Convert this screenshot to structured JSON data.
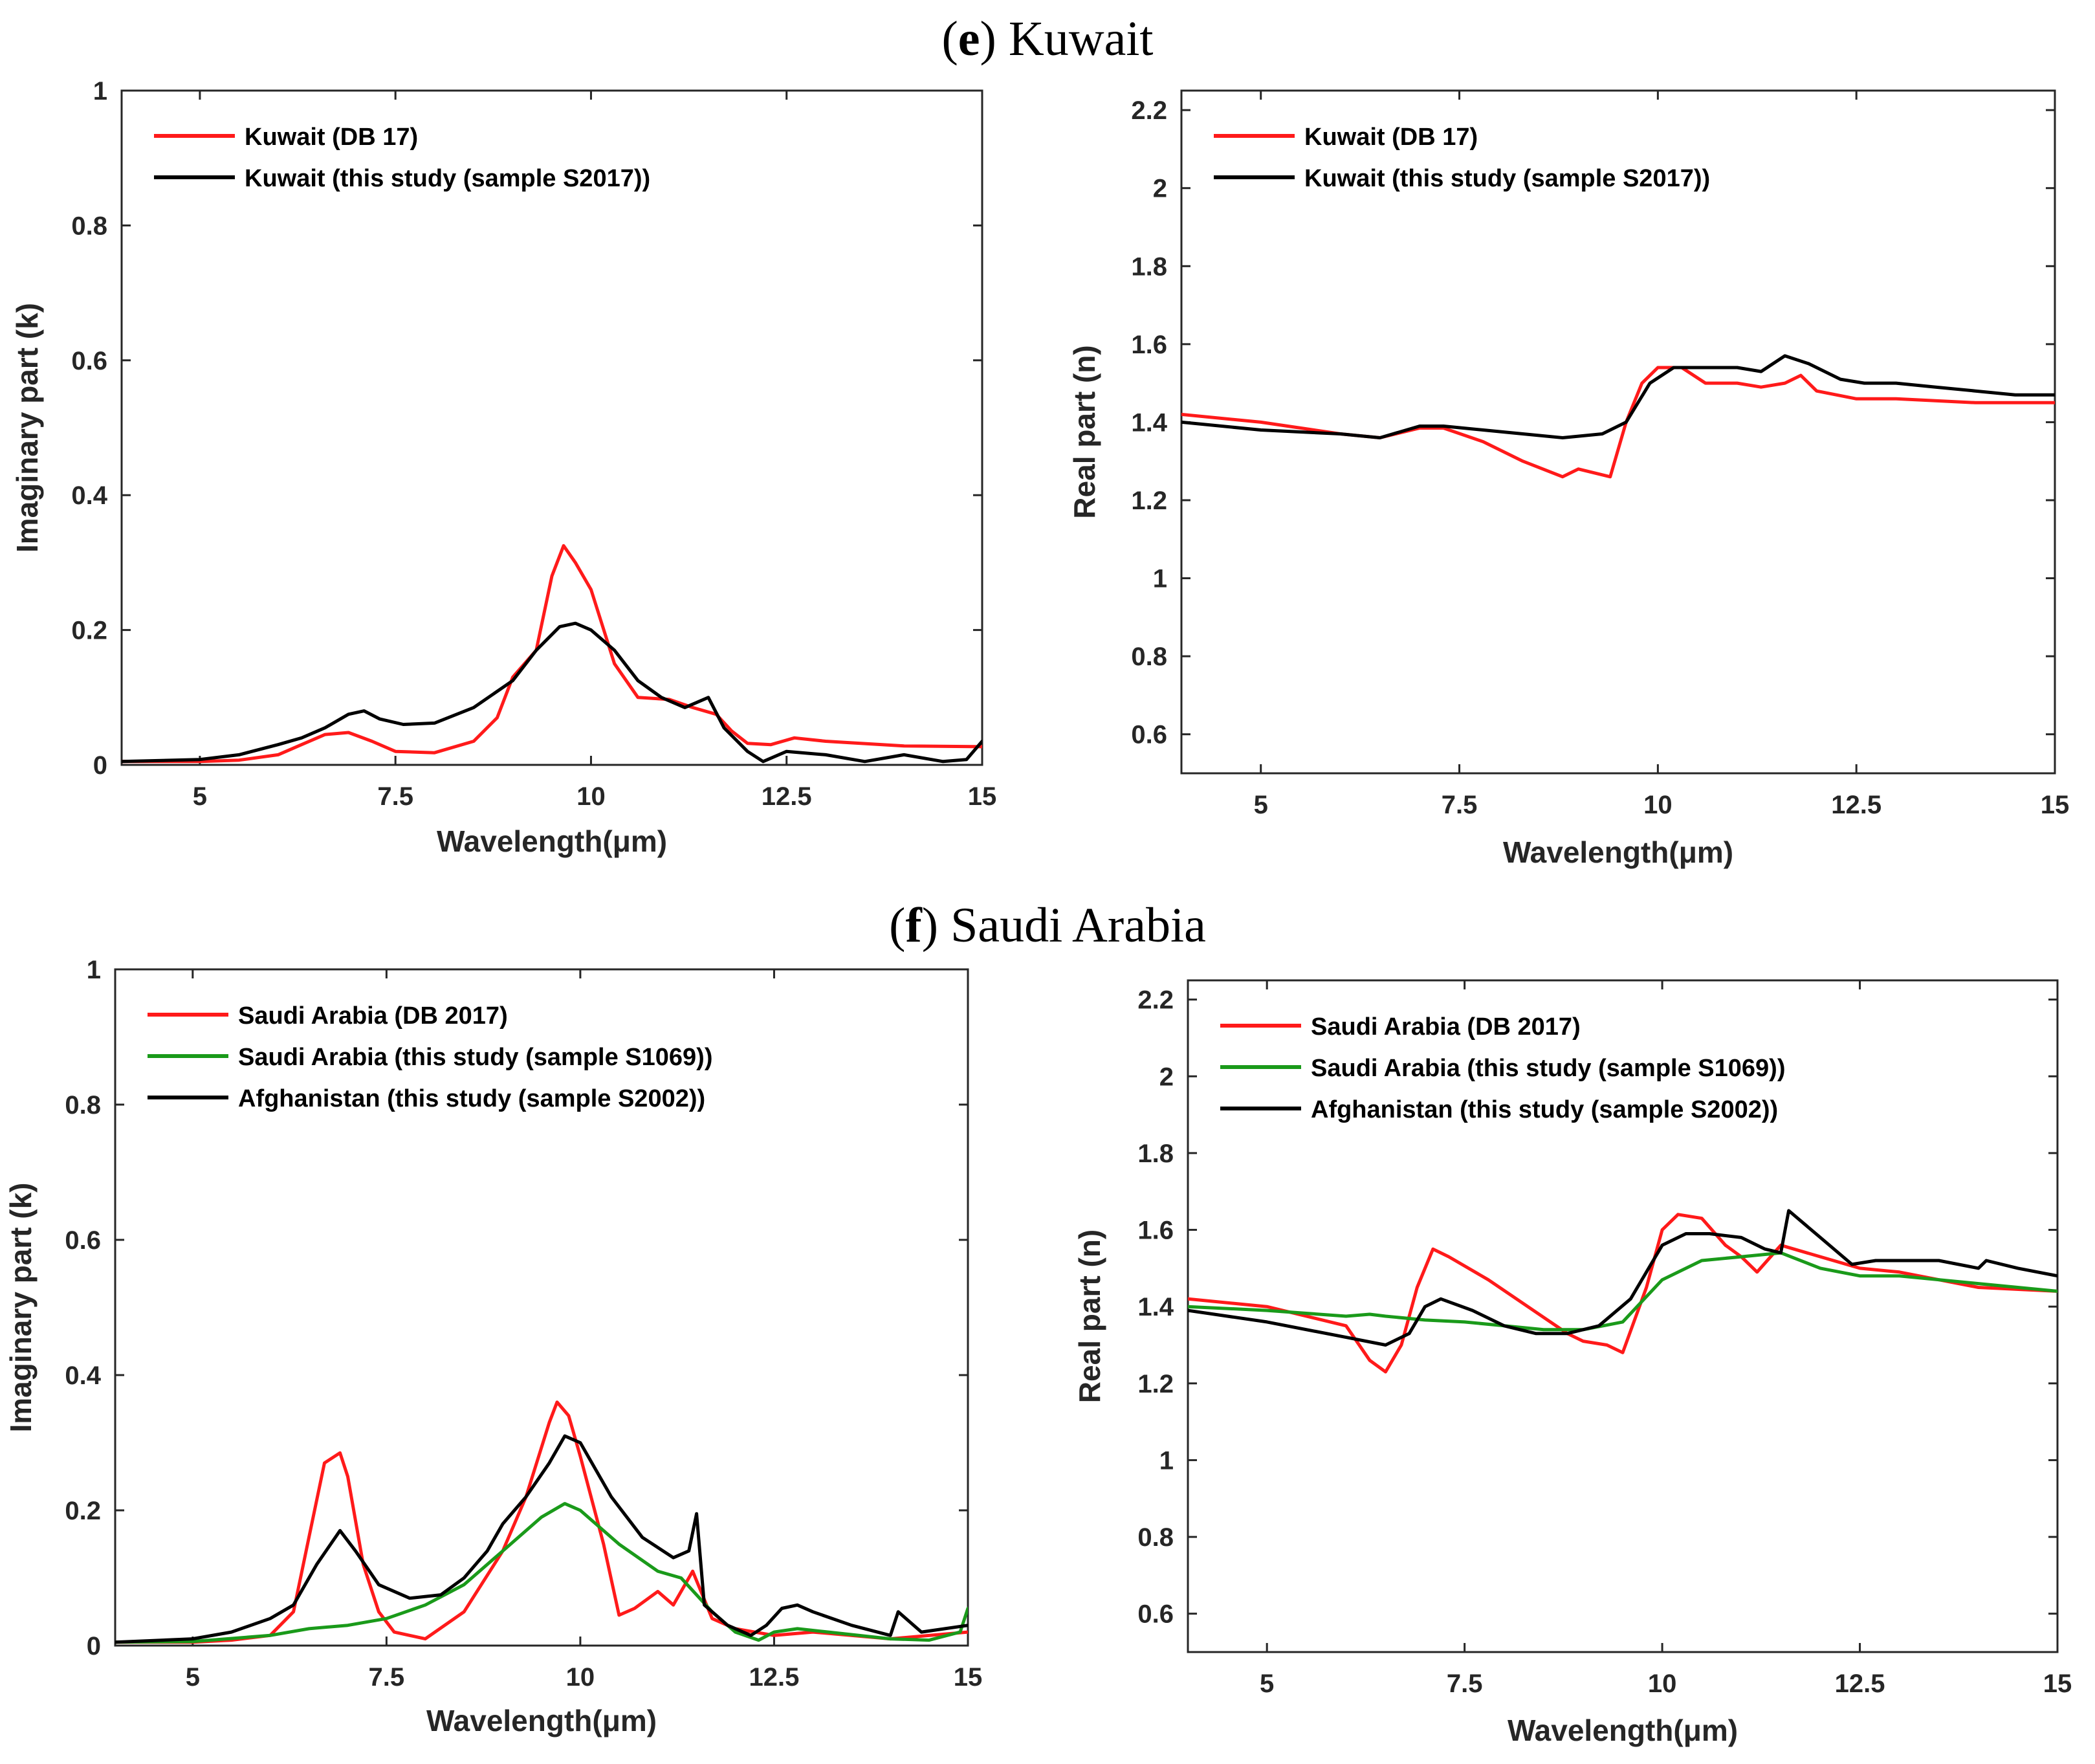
{
  "figure": {
    "sections": [
      {
        "letter": "e",
        "name": "Kuwait"
      },
      {
        "letter": "f",
        "name": "Saudi Arabia"
      }
    ]
  },
  "colors": {
    "red": "#ff1a1a",
    "green": "#1a9a1a",
    "black": "#000000"
  },
  "chart_data": [
    {
      "id": "e-imag",
      "type": "line",
      "xlabel": "Wavelength(μm)",
      "ylabel": "Imaginary part (k)",
      "xlim": [
        4,
        15
      ],
      "ylim": [
        0,
        1
      ],
      "xticks": [
        5,
        7.5,
        10,
        12.5,
        15
      ],
      "xtick_labels": [
        "5",
        "7.5",
        "10",
        "12.5",
        "15"
      ],
      "yticks": [
        0,
        0.2,
        0.4,
        0.6,
        0.8,
        1
      ],
      "ytick_labels": [
        "0",
        "0.2",
        "0.4",
        "0.6",
        "0.8",
        "1"
      ],
      "legend": "top-left",
      "series": [
        {
          "name": "Kuwait (DB 17)",
          "color": "red",
          "x": [
            4,
            5,
            5.5,
            6,
            6.3,
            6.6,
            6.9,
            7.2,
            7.5,
            8,
            8.5,
            8.8,
            9,
            9.3,
            9.5,
            9.65,
            9.8,
            10,
            10.3,
            10.6,
            11,
            11.3,
            11.6,
            11.8,
            12,
            12.3,
            12.6,
            13,
            14,
            15
          ],
          "y": [
            0.005,
            0.005,
            0.007,
            0.015,
            0.03,
            0.045,
            0.048,
            0.035,
            0.02,
            0.018,
            0.035,
            0.07,
            0.13,
            0.17,
            0.28,
            0.325,
            0.3,
            0.26,
            0.15,
            0.1,
            0.097,
            0.085,
            0.075,
            0.05,
            0.032,
            0.03,
            0.04,
            0.035,
            0.028,
            0.027
          ]
        },
        {
          "name": "Kuwait (this study (sample S2017))",
          "color": "black",
          "x": [
            4,
            5,
            5.5,
            6,
            6.3,
            6.6,
            6.9,
            7.1,
            7.3,
            7.6,
            8,
            8.5,
            9,
            9.3,
            9.6,
            9.8,
            10,
            10.3,
            10.6,
            10.9,
            11.2,
            11.5,
            11.7,
            12,
            12.2,
            12.5,
            13,
            13.5,
            14,
            14.5,
            14.8,
            15
          ],
          "y": [
            0.005,
            0.008,
            0.015,
            0.03,
            0.04,
            0.055,
            0.075,
            0.08,
            0.068,
            0.06,
            0.062,
            0.085,
            0.125,
            0.17,
            0.205,
            0.21,
            0.2,
            0.17,
            0.125,
            0.1,
            0.085,
            0.1,
            0.055,
            0.02,
            0.005,
            0.02,
            0.015,
            0.005,
            0.015,
            0.005,
            0.008,
            0.035
          ]
        }
      ]
    },
    {
      "id": "e-real",
      "type": "line",
      "xlabel": "Wavelength(μm)",
      "ylabel": "Real part (n)",
      "xlim": [
        4,
        15
      ],
      "ylim": [
        0.5,
        2.25
      ],
      "xticks": [
        5,
        7.5,
        10,
        12.5,
        15
      ],
      "xtick_labels": [
        "5",
        "7.5",
        "10",
        "12.5",
        "15"
      ],
      "yticks": [
        0.6,
        0.8,
        1,
        1.2,
        1.4,
        1.6,
        1.8,
        2,
        2.2
      ],
      "ytick_labels": [
        "0.6",
        "0.8",
        "1",
        "1.2",
        "1.4",
        "1.6",
        "1.8",
        "2",
        "2.2"
      ],
      "legend": "top-left",
      "series": [
        {
          "name": "Kuwait (DB 17)",
          "color": "red",
          "x": [
            4,
            5,
            6,
            6.5,
            7,
            7.3,
            7.8,
            8.3,
            8.8,
            9,
            9.2,
            9.4,
            9.6,
            9.8,
            10,
            10.3,
            10.6,
            11,
            11.3,
            11.6,
            11.8,
            12,
            12.5,
            13,
            14,
            15
          ],
          "y": [
            1.42,
            1.4,
            1.37,
            1.36,
            1.385,
            1.385,
            1.35,
            1.3,
            1.26,
            1.28,
            1.27,
            1.26,
            1.4,
            1.5,
            1.54,
            1.54,
            1.5,
            1.5,
            1.49,
            1.5,
            1.52,
            1.48,
            1.46,
            1.46,
            1.45,
            1.45
          ]
        },
        {
          "name": "Kuwait (this study (sample S2017))",
          "color": "black",
          "x": [
            4,
            5,
            6,
            6.5,
            7,
            7.3,
            7.8,
            8.3,
            8.8,
            9.3,
            9.6,
            9.9,
            10.2,
            10.6,
            11,
            11.3,
            11.6,
            11.9,
            12.3,
            12.6,
            13,
            13.5,
            14,
            14.5,
            15
          ],
          "y": [
            1.4,
            1.38,
            1.37,
            1.36,
            1.39,
            1.39,
            1.38,
            1.37,
            1.36,
            1.37,
            1.4,
            1.5,
            1.54,
            1.54,
            1.54,
            1.53,
            1.57,
            1.55,
            1.51,
            1.5,
            1.5,
            1.49,
            1.48,
            1.47,
            1.47
          ]
        }
      ]
    },
    {
      "id": "f-imag",
      "type": "line",
      "xlabel": "Wavelength(μm)",
      "ylabel": "Imaginary part (k)",
      "xlim": [
        4,
        15
      ],
      "ylim": [
        0,
        1
      ],
      "xticks": [
        5,
        7.5,
        10,
        12.5,
        15
      ],
      "xtick_labels": [
        "5",
        "7.5",
        "10",
        "12.5",
        "15"
      ],
      "yticks": [
        0,
        0.2,
        0.4,
        0.6,
        0.8,
        1
      ],
      "ytick_labels": [
        "0",
        "0.2",
        "0.4",
        "0.6",
        "0.8",
        "1"
      ],
      "legend": "top-left",
      "series": [
        {
          "name": "Saudi Arabia (DB 2017)",
          "color": "red",
          "x": [
            4,
            5,
            5.5,
            6,
            6.3,
            6.5,
            6.7,
            6.9,
            7,
            7.2,
            7.4,
            7.6,
            8,
            8.5,
            9,
            9.3,
            9.6,
            9.7,
            9.85,
            10,
            10.3,
            10.5,
            10.7,
            11,
            11.2,
            11.45,
            11.7,
            12,
            12.5,
            13,
            14,
            15
          ],
          "y": [
            0.005,
            0.005,
            0.008,
            0.015,
            0.05,
            0.16,
            0.27,
            0.285,
            0.25,
            0.12,
            0.05,
            0.02,
            0.01,
            0.05,
            0.14,
            0.22,
            0.33,
            0.36,
            0.34,
            0.28,
            0.15,
            0.045,
            0.055,
            0.08,
            0.06,
            0.11,
            0.04,
            0.025,
            0.015,
            0.02,
            0.01,
            0.02
          ]
        },
        {
          "name": "Saudi Arabia (this study (sample S1069))",
          "color": "green",
          "x": [
            4,
            5,
            6,
            6.5,
            7,
            7.5,
            8,
            8.5,
            9,
            9.5,
            9.8,
            10,
            10.5,
            11,
            11.3,
            11.7,
            12,
            12.3,
            12.5,
            12.8,
            13.2,
            13.6,
            14,
            14.5,
            14.9,
            15
          ],
          "y": [
            0.005,
            0.006,
            0.015,
            0.025,
            0.03,
            0.04,
            0.06,
            0.09,
            0.14,
            0.19,
            0.21,
            0.2,
            0.15,
            0.11,
            0.1,
            0.05,
            0.02,
            0.008,
            0.02,
            0.025,
            0.02,
            0.015,
            0.01,
            0.008,
            0.02,
            0.055
          ]
        },
        {
          "name": "Afghanistan (this study (sample S2002))",
          "color": "black",
          "x": [
            4,
            5,
            5.5,
            6,
            6.3,
            6.6,
            6.9,
            7.1,
            7.4,
            7.8,
            8.2,
            8.5,
            8.8,
            9,
            9.3,
            9.6,
            9.8,
            10,
            10.4,
            10.8,
            11.2,
            11.4,
            11.5,
            11.6,
            11.9,
            12.2,
            12.4,
            12.6,
            12.8,
            13,
            13.5,
            14,
            14.1,
            14.4,
            15
          ],
          "y": [
            0.005,
            0.01,
            0.02,
            0.04,
            0.06,
            0.12,
            0.17,
            0.14,
            0.09,
            0.07,
            0.075,
            0.1,
            0.14,
            0.18,
            0.22,
            0.27,
            0.31,
            0.3,
            0.22,
            0.16,
            0.13,
            0.14,
            0.195,
            0.06,
            0.03,
            0.015,
            0.03,
            0.055,
            0.06,
            0.05,
            0.03,
            0.015,
            0.05,
            0.02,
            0.03
          ]
        }
      ]
    },
    {
      "id": "f-real",
      "type": "line",
      "xlabel": "Wavelength(μm)",
      "ylabel": "Real part (n)",
      "xlim": [
        4,
        15
      ],
      "ylim": [
        0.5,
        2.25
      ],
      "xticks": [
        5,
        7.5,
        10,
        12.5,
        15
      ],
      "xtick_labels": [
        "5",
        "7.5",
        "10",
        "12.5",
        "15"
      ],
      "yticks": [
        0.6,
        0.8,
        1,
        1.2,
        1.4,
        1.6,
        1.8,
        2,
        2.2
      ],
      "ytick_labels": [
        "0.6",
        "0.8",
        "1",
        "1.2",
        "1.4",
        "1.6",
        "1.8",
        "2",
        "2.2"
      ],
      "legend": "top-left",
      "series": [
        {
          "name": "Saudi Arabia (DB 2017)",
          "color": "red",
          "x": [
            4,
            5,
            6,
            6.3,
            6.5,
            6.7,
            6.9,
            7.1,
            7.3,
            7.8,
            8.3,
            8.8,
            9,
            9.3,
            9.5,
            9.8,
            10,
            10.2,
            10.5,
            10.8,
            11,
            11.2,
            11.5,
            12,
            12.5,
            13,
            14,
            15
          ],
          "y": [
            1.42,
            1.4,
            1.35,
            1.26,
            1.23,
            1.3,
            1.45,
            1.55,
            1.53,
            1.47,
            1.4,
            1.33,
            1.31,
            1.3,
            1.28,
            1.45,
            1.6,
            1.64,
            1.63,
            1.56,
            1.53,
            1.49,
            1.56,
            1.53,
            1.5,
            1.49,
            1.45,
            1.44
          ]
        },
        {
          "name": "Saudi Arabia (this study (sample S1069))",
          "color": "green",
          "x": [
            4,
            5,
            6,
            6.3,
            6.5,
            7,
            7.5,
            8,
            8.5,
            9,
            9.5,
            10,
            10.5,
            11,
            11.5,
            12,
            12.5,
            13,
            14,
            15
          ],
          "y": [
            1.4,
            1.39,
            1.375,
            1.38,
            1.375,
            1.365,
            1.36,
            1.35,
            1.34,
            1.34,
            1.36,
            1.47,
            1.52,
            1.53,
            1.54,
            1.5,
            1.48,
            1.48,
            1.46,
            1.44
          ]
        },
        {
          "name": "Afghanistan (this study (sample S2002))",
          "color": "black",
          "x": [
            4,
            5,
            6,
            6.5,
            6.8,
            7,
            7.2,
            7.6,
            8,
            8.4,
            8.8,
            9.2,
            9.6,
            10,
            10.3,
            10.6,
            11,
            11.3,
            11.5,
            11.6,
            12,
            12.4,
            12.7,
            13,
            13.5,
            14,
            14.1,
            14.5,
            15
          ],
          "y": [
            1.39,
            1.36,
            1.32,
            1.3,
            1.33,
            1.4,
            1.42,
            1.39,
            1.35,
            1.33,
            1.33,
            1.35,
            1.42,
            1.56,
            1.59,
            1.59,
            1.58,
            1.55,
            1.54,
            1.65,
            1.58,
            1.51,
            1.52,
            1.52,
            1.52,
            1.5,
            1.52,
            1.5,
            1.48
          ]
        }
      ]
    }
  ]
}
